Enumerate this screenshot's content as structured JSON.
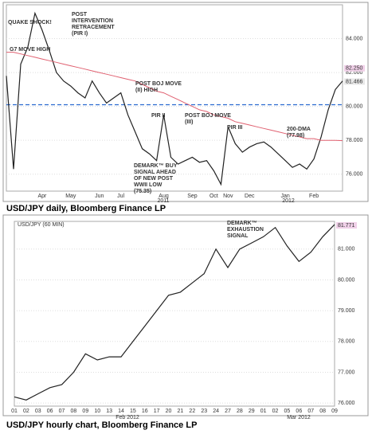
{
  "chart_data": [
    {
      "type": "line",
      "caption": "USD/JPY daily, Bloomberg Finance LP",
      "categories": [
        null,
        null,
        null,
        null,
        null,
        "Apr",
        null,
        null,
        null,
        "May",
        null,
        null,
        null,
        "Jun",
        null,
        null,
        "Jul",
        null,
        null,
        null,
        null,
        null,
        "Aug",
        null,
        null,
        null,
        "Sep",
        null,
        null,
        "Oct",
        null,
        "Nov",
        null,
        null,
        "Dec",
        null,
        null,
        null,
        null,
        "Jan",
        null,
        null,
        null,
        "Feb",
        null,
        null,
        null,
        null
      ],
      "x_group_labels": [
        "2011",
        "2012"
      ],
      "series": [
        {
          "name": "USD/JPY",
          "color": "#222222",
          "values": [
            81.8,
            76.3,
            82.5,
            83.5,
            85.5,
            84.5,
            83.3,
            82.0,
            81.5,
            81.2,
            80.8,
            80.5,
            81.5,
            80.8,
            80.2,
            80.5,
            80.8,
            79.5,
            78.5,
            77.5,
            77.2,
            76.8,
            79.5,
            77.0,
            76.6,
            76.8,
            77.0,
            76.7,
            76.8,
            76.2,
            75.4,
            78.8,
            77.8,
            77.3,
            77.6,
            77.8,
            77.9,
            77.6,
            77.2,
            76.8,
            76.4,
            76.6,
            76.3,
            76.9,
            78.2,
            79.8,
            81.0,
            81.5
          ]
        },
        {
          "name": "200-DMA",
          "color": "#e06070",
          "values": [
            83.2,
            83.2,
            83.1,
            83.0,
            82.9,
            82.8,
            82.7,
            82.6,
            82.5,
            82.4,
            82.3,
            82.2,
            82.1,
            82.0,
            81.9,
            81.8,
            81.7,
            81.6,
            81.5,
            81.3,
            81.1,
            80.9,
            80.8,
            80.6,
            80.4,
            80.2,
            80.0,
            79.8,
            79.7,
            79.5,
            79.4,
            79.3,
            79.1,
            79.0,
            78.9,
            78.8,
            78.7,
            78.6,
            78.5,
            78.4,
            78.3,
            78.2,
            78.1,
            78.1,
            78.0,
            78.0,
            78.0,
            77.98
          ]
        }
      ],
      "reference_line": 80.1,
      "ylim": [
        75,
        86
      ],
      "yticks": [
        {
          "value": 76,
          "label": "76.000"
        },
        {
          "value": 78,
          "label": "78.000"
        },
        {
          "value": 80,
          "label": "80.000"
        },
        {
          "value": 82,
          "label": "82.000"
        },
        {
          "value": 84,
          "label": "84.000"
        }
      ],
      "price_labels": [
        {
          "value": 82.25,
          "label": "82.250"
        },
        {
          "value": 81.466,
          "label": "81.466"
        }
      ],
      "annotations": [
        "QUAKE SHOCK!",
        "G7 MOVE HIGH",
        "POST INTERVENTION RETRACEMENT (PIR I)",
        "POST BOJ MOVE (II) HIGH",
        "PIR II",
        "POST BOJ MOVE (III)",
        "PIR III",
        "200-DMA (77.98)",
        "DEMARK™ BUY SIGNAL AHEAD OF NEW POST WWII LOW (75.35)"
      ]
    },
    {
      "type": "line",
      "caption": "USD/JPY hourly chart, Bloomberg Finance LP",
      "title": "USD/JPY (60 MIN)",
      "categories": [
        "01",
        "02",
        "03",
        "06",
        "07",
        "08",
        "09",
        "10",
        "13",
        "14",
        "15",
        "16",
        "17",
        "20",
        "21",
        "22",
        "23",
        "24",
        "27",
        "28",
        "29",
        "01",
        "02",
        "05",
        "06",
        "07",
        "08",
        "09"
      ],
      "x_group_labels": [
        "Feb 2012",
        "Mar 2012"
      ],
      "series": [
        {
          "name": "USD/JPY",
          "color": "#222222",
          "values": [
            76.2,
            76.1,
            76.3,
            76.5,
            76.6,
            77.0,
            77.6,
            77.4,
            77.5,
            77.5,
            78.0,
            78.5,
            79.0,
            79.5,
            79.6,
            79.9,
            80.2,
            81.0,
            80.4,
            81.0,
            81.2,
            81.4,
            81.7,
            81.1,
            80.6,
            80.9,
            81.4,
            81.8
          ]
        }
      ],
      "ylim": [
        75.9,
        81.9
      ],
      "yticks": [
        {
          "value": 76,
          "label": "76.000"
        },
        {
          "value": 77,
          "label": "77.000"
        },
        {
          "value": 78,
          "label": "78.000"
        },
        {
          "value": 79,
          "label": "79.000"
        },
        {
          "value": 80,
          "label": "80.000"
        },
        {
          "value": 81,
          "label": "81.000"
        }
      ],
      "price_labels": [
        {
          "value": 81.771,
          "label": "81.771"
        }
      ],
      "annotations": [
        "DEMARK™ EXHAUSTION SIGNAL"
      ]
    }
  ]
}
